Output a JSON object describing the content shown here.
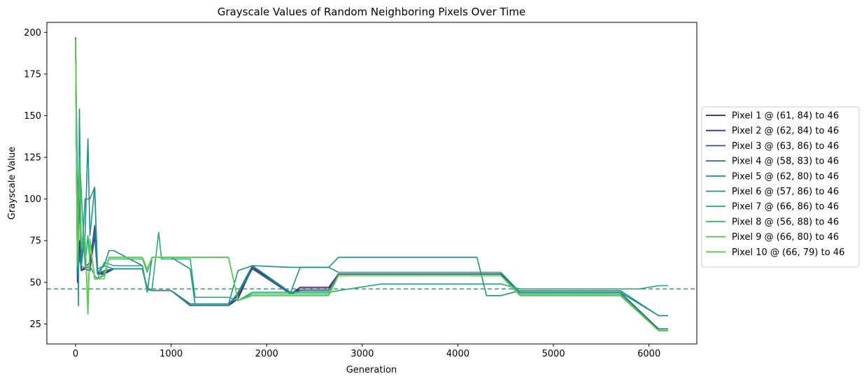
{
  "chart_data": {
    "type": "line",
    "title": "Grayscale Values of Random Neighboring Pixels Over Time",
    "xlabel": "Generation",
    "ylabel": "Grayscale Value",
    "xlim": [
      -300,
      6500
    ],
    "ylim": [
      13,
      206
    ],
    "xticks": [
      0,
      1000,
      2000,
      3000,
      4000,
      5000,
      6000
    ],
    "yticks": [
      25,
      50,
      75,
      100,
      125,
      150,
      175,
      200
    ],
    "grid": false,
    "legend_position": "center-right",
    "reference_line": {
      "y": 46,
      "style": "dashed",
      "color": "#3aa66b"
    },
    "series": [
      {
        "name": "Pixel 1 @ (61, 84) to 46",
        "color": "#46156c",
        "x": [
          0,
          20,
          40,
          60,
          100,
          150,
          200,
          230,
          300,
          400,
          700,
          750,
          800,
          1000,
          1200,
          1250,
          1600,
          1700,
          1850,
          2250,
          2350,
          2650,
          2750,
          4450,
          4650,
          5700,
          6100,
          6200
        ],
        "y": [
          196,
          50,
          75,
          57,
          58,
          57,
          78,
          55,
          55,
          58,
          58,
          46,
          45,
          45,
          36,
          36,
          36,
          40,
          59,
          43,
          47,
          47,
          55,
          55,
          43,
          43,
          21,
          21
        ]
      },
      {
        "name": "Pixel 2 @ (62, 84) to 46",
        "color": "#472c7a",
        "x": [
          0,
          20,
          40,
          60,
          100,
          150,
          200,
          230,
          300,
          400,
          700,
          750,
          800,
          1000,
          1200,
          1250,
          1600,
          1700,
          1850,
          2250,
          2350,
          2650,
          2750,
          4450,
          4650,
          5700,
          6100,
          6200
        ],
        "y": [
          197,
          52,
          70,
          58,
          58,
          60,
          82,
          56,
          55,
          58,
          58,
          46,
          45,
          45,
          37,
          37,
          37,
          42,
          60,
          43,
          46,
          46,
          55,
          55,
          43,
          43,
          21,
          21
        ]
      },
      {
        "name": "Pixel 3 @ (63, 86) to 46",
        "color": "#3b518b",
        "x": [
          0,
          20,
          40,
          60,
          100,
          150,
          200,
          230,
          300,
          400,
          700,
          750,
          800,
          1000,
          1200,
          1250,
          1600,
          1700,
          1850,
          2250,
          2350,
          2650,
          2750,
          4450,
          4650,
          5700,
          6100,
          6200
        ],
        "y": [
          196,
          55,
          68,
          57,
          59,
          62,
          84,
          56,
          56,
          58,
          58,
          46,
          45,
          45,
          36,
          36,
          36,
          42,
          58,
          43,
          45,
          45,
          55,
          55,
          43,
          43,
          22,
          22
        ]
      },
      {
        "name": "Pixel 4 @ (58, 83) to 46",
        "color": "#2c718e",
        "x": [
          0,
          20,
          40,
          60,
          100,
          150,
          200,
          230,
          300,
          400,
          700,
          750,
          800,
          1000,
          1200,
          1250,
          1600,
          1700,
          1850,
          2250,
          2350,
          2650,
          2750,
          4450,
          4650,
          5700,
          6100,
          6200
        ],
        "y": [
          195,
          55,
          65,
          60,
          58,
          60,
          80,
          55,
          57,
          58,
          58,
          47,
          45,
          45,
          37,
          37,
          37,
          43,
          58,
          44,
          45,
          45,
          55,
          55,
          44,
          44,
          22,
          22
        ]
      },
      {
        "name": "Pixel 5 @ (62, 80) to 46",
        "color": "#21908d",
        "x": [
          0,
          20,
          40,
          60,
          100,
          150,
          200,
          230,
          300,
          400,
          700,
          750,
          800,
          1000,
          1200,
          1250,
          1600,
          1700,
          1850,
          2250,
          2350,
          2650,
          2750,
          4450,
          4650,
          5700,
          6100,
          6200
        ],
        "y": [
          195,
          58,
          100,
          60,
          100,
          100,
          107,
          58,
          60,
          58,
          58,
          47,
          45,
          45,
          36,
          36,
          36,
          44,
          60,
          44,
          59,
          59,
          56,
          56,
          44,
          44,
          30,
          30
        ]
      },
      {
        "name": "Pixel 6 @ (57, 86) to 46",
        "color": "#1f8f8a",
        "x": [
          0,
          20,
          30,
          40,
          60,
          100,
          130,
          150,
          200,
          230,
          300,
          350,
          400,
          700,
          750,
          800,
          1000,
          1200,
          1250,
          1600,
          1700,
          1850,
          2250,
          2650,
          2750,
          4200,
          4300,
          4450,
          4650,
          5700,
          6100,
          6200
        ],
        "y": [
          195,
          110,
          36,
          154,
          60,
          78,
          136,
          78,
          107,
          56,
          60,
          69,
          69,
          60,
          44,
          65,
          65,
          58,
          37,
          37,
          57,
          60,
          59,
          59,
          65,
          65,
          42,
          42,
          45,
          45,
          30,
          30
        ]
      },
      {
        "name": "Pixel 7 @ (66, 86) to 46",
        "color": "#27a97d",
        "x": [
          0,
          20,
          40,
          60,
          100,
          130,
          150,
          200,
          230,
          300,
          400,
          700,
          750,
          800,
          870,
          900,
          1000,
          1200,
          1250,
          1600,
          1700,
          1850,
          2250,
          2650,
          2750,
          3200,
          4000,
          4100,
          4450,
          4650,
          5700,
          5900,
          6100,
          6200
        ],
        "y": [
          195,
          90,
          126,
          104,
          60,
          78,
          60,
          54,
          52,
          62,
          60,
          60,
          45,
          46,
          80,
          64,
          64,
          64,
          41,
          41,
          39,
          44,
          44,
          44,
          45,
          49,
          49,
          49,
          49,
          46,
          46,
          46,
          48,
          48
        ]
      },
      {
        "name": "Pixel 8 @ (56, 88) to 46",
        "color": "#3ab66f",
        "x": [
          0,
          20,
          40,
          60,
          100,
          130,
          150,
          200,
          230,
          300,
          350,
          700,
          750,
          800,
          1000,
          1200,
          1250,
          1600,
          1700,
          1850,
          2250,
          2650,
          2750,
          4450,
          4650,
          5700,
          6100,
          6200
        ],
        "y": [
          195,
          70,
          125,
          70,
          76,
          31,
          76,
          52,
          52,
          55,
          64,
          64,
          56,
          65,
          65,
          65,
          65,
          65,
          39,
          43,
          43,
          43,
          54,
          54,
          43,
          43,
          21,
          21
        ]
      },
      {
        "name": "Pixel 9 @ (66, 80) to 46",
        "color": "#4ec05c",
        "x": [
          0,
          20,
          40,
          60,
          100,
          130,
          150,
          200,
          230,
          300,
          350,
          700,
          750,
          800,
          1000,
          1200,
          1250,
          1600,
          1700,
          1850,
          2250,
          2650,
          2750,
          4450,
          4650,
          5700,
          6100,
          6200
        ],
        "y": [
          195,
          60,
          120,
          75,
          75,
          33,
          74,
          52,
          52,
          54,
          65,
          65,
          57,
          65,
          65,
          65,
          65,
          65,
          39,
          42,
          42,
          42,
          54,
          54,
          42,
          42,
          21,
          21
        ]
      },
      {
        "name": "Pixel 10 @ (66, 79) to 46",
        "color": "#62cb4f",
        "x": [
          0,
          20,
          40,
          60,
          100,
          130,
          150,
          200,
          230,
          300,
          350,
          700,
          750,
          800,
          1000,
          1200,
          1250,
          1600,
          1700,
          1850,
          2250,
          2650,
          2750,
          4450,
          4650,
          5700,
          6100,
          6200
        ],
        "y": [
          196,
          65,
          85,
          77,
          77,
          35,
          75,
          52,
          52,
          52,
          65,
          65,
          58,
          65,
          65,
          65,
          65,
          65,
          39,
          42,
          42,
          42,
          54,
          54,
          42,
          42,
          21,
          21
        ]
      }
    ]
  }
}
